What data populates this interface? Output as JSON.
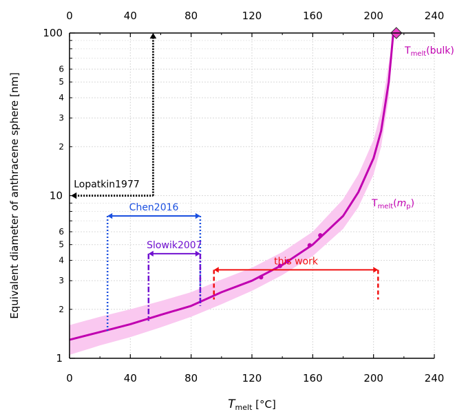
{
  "chart_data": {
    "type": "line",
    "xlabel_main": "T",
    "xlabel_sub": "melt",
    "xlabel_unit": " [°C]",
    "ylabel": "Equivalent diameter of anthracene sphere [nm]",
    "xlim": [
      0,
      240
    ],
    "ylim": [
      1,
      100
    ],
    "yscale": "log",
    "grid": true,
    "x_ticks": [
      0,
      40,
      80,
      120,
      160,
      200,
      240
    ],
    "x_tick_labels": [
      "0",
      "40",
      "80",
      "120",
      "160",
      "200",
      "240"
    ],
    "y_major_ticks": [
      1,
      10,
      100
    ],
    "y_major_labels": [
      "1",
      "10",
      "100"
    ],
    "y_minor_ticks": [
      2,
      3,
      4,
      5,
      6,
      20,
      30,
      40,
      50,
      60
    ],
    "y_minor_labels": [
      "2",
      "3",
      "4",
      "5",
      "6",
      "2",
      "3",
      "4",
      "5",
      "6"
    ],
    "curve": {
      "label_main": "T",
      "label_sub": "melt",
      "label_arg": "m",
      "label_arg_sub": "p",
      "color": "#c000b0",
      "band_color": "#fac8f0",
      "points": [
        [
          0,
          1.3
        ],
        [
          20,
          1.45
        ],
        [
          40,
          1.62
        ],
        [
          60,
          1.85
        ],
        [
          80,
          2.1
        ],
        [
          100,
          2.55
        ],
        [
          120,
          3.0
        ],
        [
          140,
          3.75
        ],
        [
          160,
          5.0
        ],
        [
          180,
          7.5
        ],
        [
          190,
          10.5
        ],
        [
          200,
          17
        ],
        [
          205,
          25
        ],
        [
          210,
          50
        ],
        [
          213,
          100
        ]
      ],
      "band_lower": [
        [
          0,
          1.05
        ],
        [
          20,
          1.2
        ],
        [
          40,
          1.35
        ],
        [
          60,
          1.55
        ],
        [
          80,
          1.8
        ],
        [
          100,
          2.15
        ],
        [
          120,
          2.6
        ],
        [
          140,
          3.25
        ],
        [
          160,
          4.25
        ],
        [
          180,
          6.25
        ],
        [
          190,
          8.5
        ],
        [
          200,
          13.5
        ],
        [
          205,
          20
        ],
        [
          210,
          40
        ],
        [
          212,
          100
        ]
      ],
      "band_upper": [
        [
          0,
          1.6
        ],
        [
          20,
          1.8
        ],
        [
          40,
          2.0
        ],
        [
          60,
          2.25
        ],
        [
          80,
          2.55
        ],
        [
          100,
          3.05
        ],
        [
          120,
          3.6
        ],
        [
          140,
          4.5
        ],
        [
          160,
          6.0
        ],
        [
          180,
          9.5
        ],
        [
          190,
          13.5
        ],
        [
          200,
          22
        ],
        [
          205,
          33
        ],
        [
          210,
          65
        ],
        [
          214,
          100
        ]
      ],
      "markers": [
        [
          126,
          3.15
        ],
        [
          138.5,
          3.7
        ],
        [
          143.5,
          3.95
        ],
        [
          158,
          4.95
        ],
        [
          165,
          5.7
        ]
      ]
    },
    "bulk_point": {
      "x": 215,
      "y": 100,
      "label_main": "T",
      "label_sub": "melt",
      "label_rest": "(bulk)",
      "color": "#f040c8"
    },
    "annotations": [
      {
        "label": "Lopatkin1977",
        "color": "#000000",
        "x_range": [
          1,
          55
        ],
        "y_arrow": 10,
        "y_start": 10,
        "y_end": 100,
        "style": "dotted-thick"
      },
      {
        "label": "Chen2016",
        "color": "#1a4fe0",
        "x_range": [
          25,
          86
        ],
        "y_arrow": 7.5,
        "y_left": 1.45,
        "y_right": 2.1,
        "style": "dotted"
      },
      {
        "label": "Slowik2007",
        "color": "#7010d0",
        "x_range": [
          52,
          86
        ],
        "y_arrow": 4.4,
        "y_left": 1.7,
        "y_right": 2.1,
        "style": "dashdot"
      },
      {
        "label": "this work",
        "color": "#f01010",
        "x_range": [
          95,
          203
        ],
        "y_arrow": 3.5,
        "y_left": 2.3,
        "y_right": 2.3,
        "style": "dashed"
      }
    ]
  }
}
